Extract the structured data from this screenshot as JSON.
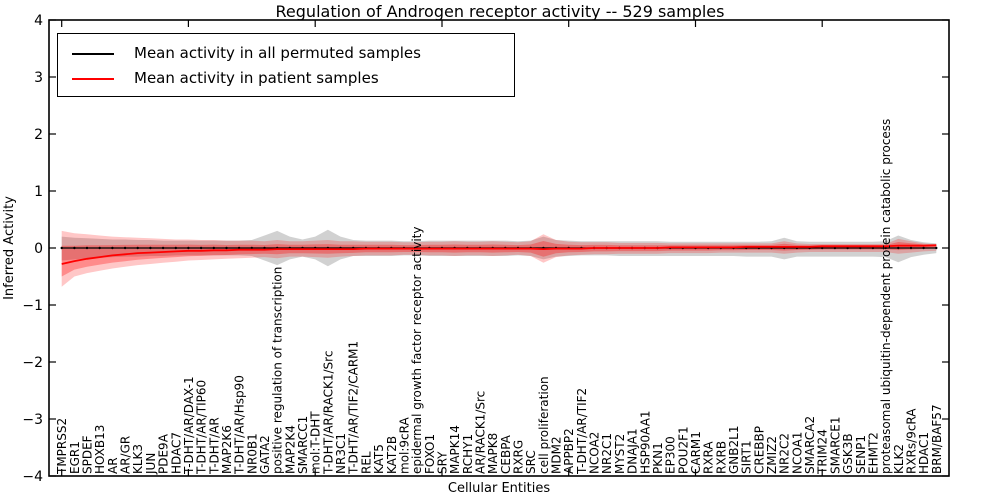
{
  "title": "Regulation of Androgen receptor activity -- 529 samples",
  "legend": [
    {
      "label": "Mean activity in all permuted samples",
      "color": "#000000"
    },
    {
      "label": "Mean activity in patient samples",
      "color": "#ff0000"
    }
  ],
  "chart_data": {
    "type": "line",
    "title": "Regulation of Androgen receptor activity -- 529 samples",
    "xlabel": "Cellular Entities",
    "ylabel": "Inferred Activity",
    "ylim": [
      -4,
      4
    ],
    "yticks": [
      4,
      3,
      2,
      1,
      0,
      -1,
      -2,
      -3,
      -4
    ],
    "xtick_step": 10,
    "grid": false,
    "legend_position": "upper-left",
    "categories": [
      "TMPRSS2",
      "EGR1",
      "SPDEF",
      "HOXB13",
      "AR",
      "AR/GR",
      "KLK3",
      "JUN",
      "PDE9A",
      "HDAC7",
      "T-DHT/AR/DAX-1",
      "T-DHT/AR/TIP60",
      "T-DHT/AR",
      "MAP2K6",
      "T-DHT/AR/Hsp90",
      "NR0B1",
      "GATA2",
      "positive regulation of transcription",
      "MAP2K4",
      "SMARCC1",
      "mol:T-DHT",
      "T-DHT/AR/RACK1/Src",
      "NR3C1",
      "T-DHT/AR/TIF2/CARM1",
      "REL",
      "KAT5",
      "KAT2B",
      "mol:9cRA",
      "epidermal growth factor receptor activity",
      "FOXO1",
      "SRY",
      "MAPK14",
      "RCHY1",
      "AR/RACK1/Src",
      "MAPK8",
      "CEBPA",
      "RXRG",
      "SRC",
      "cell proliferation",
      "MDM2",
      "APPBP2",
      "T-DHT/AR/TIF2",
      "NCOA2",
      "NR2C1",
      "MYST2",
      "DNAJA1",
      "HSP90AA1",
      "PKN1",
      "EP300",
      "POU2F1",
      "CARM1",
      "RXRA",
      "RXRB",
      "GNB2L1",
      "SIRT1",
      "CREBBP",
      "ZMIZ2",
      "NR2C2",
      "NCOA1",
      "SMARCA2",
      "TRIM24",
      "SMARCE1",
      "GSK3B",
      "SENP1",
      "EHMT2",
      "proteasomal ubiquitin-dependent protein catabolic process",
      "KLK2",
      "RXRs/9cRA",
      "HDAC1",
      "BRM/BAF57"
    ],
    "series": [
      {
        "name": "Mean activity in all permuted samples",
        "color": "#000000",
        "markers": true,
        "values": [
          0,
          0,
          0,
          0,
          0,
          0,
          0,
          0,
          0,
          0,
          0,
          0,
          0,
          0,
          0,
          0,
          0,
          0,
          0,
          0,
          0,
          0,
          0,
          0,
          0,
          0,
          0,
          0,
          0,
          0,
          0,
          0,
          0,
          0,
          0,
          0,
          0,
          0,
          0,
          0,
          0,
          0,
          0,
          0,
          0,
          0,
          0,
          0,
          0,
          0,
          0,
          0,
          0,
          0,
          0,
          0,
          0,
          0,
          0,
          0,
          0,
          0,
          0,
          0,
          0,
          0,
          0,
          0,
          0,
          0
        ]
      },
      {
        "name": "Mean activity in patient samples",
        "color": "#ff0000",
        "markers": false,
        "values": [
          -0.28,
          -0.23,
          -0.19,
          -0.16,
          -0.13,
          -0.11,
          -0.09,
          -0.08,
          -0.07,
          -0.06,
          -0.05,
          -0.05,
          -0.04,
          -0.04,
          -0.03,
          -0.03,
          -0.03,
          -0.02,
          -0.02,
          -0.02,
          -0.02,
          -0.02,
          -0.02,
          -0.02,
          -0.01,
          -0.01,
          -0.01,
          -0.01,
          -0.01,
          -0.01,
          -0.01,
          -0.01,
          -0.01,
          -0.01,
          -0.01,
          -0.01,
          -0.01,
          -0.01,
          -0.02,
          -0.01,
          -0.01,
          -0.01,
          0,
          0,
          0,
          0,
          0,
          0,
          0.01,
          0.01,
          0.01,
          0.01,
          0.01,
          0.01,
          0.02,
          0.02,
          0.02,
          0.02,
          0.02,
          0.02,
          0.03,
          0.03,
          0.03,
          0.03,
          0.03,
          0.03,
          0.04,
          0.04,
          0.04,
          0.05
        ]
      }
    ],
    "bands": [
      {
        "name": "permuted-samples-band",
        "color": "#999999",
        "opacity": 0.45,
        "hi": [
          0.2,
          0.18,
          0.17,
          0.16,
          0.15,
          0.15,
          0.14,
          0.14,
          0.13,
          0.13,
          0.13,
          0.13,
          0.13,
          0.13,
          0.13,
          0.14,
          0.22,
          0.3,
          0.2,
          0.15,
          0.2,
          0.32,
          0.2,
          0.14,
          0.13,
          0.13,
          0.13,
          0.12,
          0.12,
          0.13,
          0.13,
          0.13,
          0.13,
          0.13,
          0.13,
          0.13,
          0.12,
          0.13,
          0.2,
          0.14,
          0.13,
          0.12,
          0.12,
          0.12,
          0.12,
          0.12,
          0.12,
          0.12,
          0.11,
          0.11,
          0.11,
          0.11,
          0.11,
          0.11,
          0.11,
          0.11,
          0.12,
          0.18,
          0.12,
          0.11,
          0.11,
          0.11,
          0.11,
          0.11,
          0.11,
          0.12,
          0.22,
          0.14,
          0.1,
          0.08
        ],
        "lo": [
          -0.22,
          -0.2,
          -0.18,
          -0.17,
          -0.16,
          -0.15,
          -0.15,
          -0.14,
          -0.14,
          -0.13,
          -0.13,
          -0.13,
          -0.13,
          -0.13,
          -0.13,
          -0.14,
          -0.22,
          -0.3,
          -0.2,
          -0.15,
          -0.2,
          -0.32,
          -0.2,
          -0.14,
          -0.14,
          -0.14,
          -0.14,
          -0.13,
          -0.13,
          -0.14,
          -0.14,
          -0.14,
          -0.14,
          -0.14,
          -0.14,
          -0.14,
          -0.13,
          -0.14,
          -0.2,
          -0.15,
          -0.14,
          -0.13,
          -0.13,
          -0.13,
          -0.14,
          -0.14,
          -0.14,
          -0.14,
          -0.14,
          -0.14,
          -0.14,
          -0.14,
          -0.14,
          -0.14,
          -0.15,
          -0.15,
          -0.15,
          -0.2,
          -0.15,
          -0.15,
          -0.15,
          -0.15,
          -0.15,
          -0.15,
          -0.15,
          -0.16,
          -0.25,
          -0.16,
          -0.12,
          -0.09
        ]
      },
      {
        "name": "patient-samples-band",
        "color": "#ff0000",
        "opacity": 0.22,
        "inner_scale": 0.55,
        "inner_opacity": 0.3,
        "center_series": 1,
        "hi": [
          0.3,
          0.26,
          0.24,
          0.22,
          0.2,
          0.19,
          0.18,
          0.17,
          0.16,
          0.15,
          0.15,
          0.14,
          0.14,
          0.13,
          0.13,
          0.13,
          0.12,
          0.14,
          0.12,
          0.12,
          0.13,
          0.14,
          0.12,
          0.12,
          0.11,
          0.11,
          0.11,
          0.1,
          0.1,
          0.11,
          0.11,
          0.12,
          0.11,
          0.11,
          0.12,
          0.11,
          0.1,
          0.12,
          0.24,
          0.14,
          0.11,
          0.1,
          0.1,
          0.1,
          0.09,
          0.09,
          0.09,
          0.09,
          0.08,
          0.08,
          0.08,
          0.08,
          0.08,
          0.08,
          0.08,
          0.08,
          0.08,
          0.12,
          0.08,
          0.07,
          0.07,
          0.07,
          0.07,
          0.07,
          0.07,
          0.07,
          0.16,
          0.12,
          0.08,
          0.06
        ],
        "lo": [
          -0.68,
          -0.5,
          -0.44,
          -0.4,
          -0.36,
          -0.33,
          -0.3,
          -0.28,
          -0.26,
          -0.24,
          -0.22,
          -0.21,
          -0.2,
          -0.19,
          -0.18,
          -0.17,
          -0.16,
          -0.18,
          -0.15,
          -0.15,
          -0.16,
          -0.17,
          -0.15,
          -0.14,
          -0.13,
          -0.13,
          -0.13,
          -0.12,
          -0.12,
          -0.13,
          -0.13,
          -0.14,
          -0.13,
          -0.13,
          -0.14,
          -0.13,
          -0.12,
          -0.14,
          -0.26,
          -0.16,
          -0.13,
          -0.12,
          -0.11,
          -0.11,
          -0.1,
          -0.1,
          -0.1,
          -0.1,
          -0.09,
          -0.09,
          -0.09,
          -0.09,
          -0.08,
          -0.08,
          -0.08,
          -0.08,
          -0.08,
          -0.1,
          -0.08,
          -0.07,
          -0.07,
          -0.07,
          -0.07,
          -0.07,
          -0.07,
          -0.07,
          -0.1,
          -0.08,
          -0.06,
          -0.05
        ]
      }
    ]
  }
}
